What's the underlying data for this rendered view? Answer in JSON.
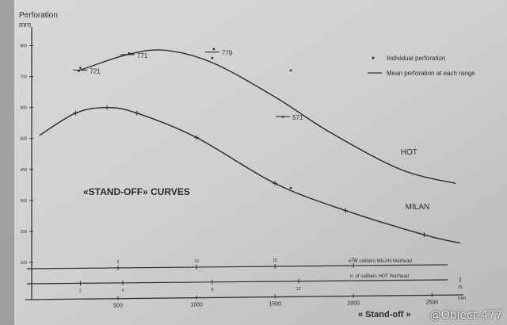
{
  "chart_data": {
    "type": "line",
    "title": "«STAND-OFF» CURVES",
    "ylabel": "Perforation",
    "yunit": "mm",
    "xlabel": "« Stand-off »",
    "xunit": "mm",
    "ylim": [
      0,
      850
    ],
    "xlim": [
      -50,
      2700
    ],
    "yticks": [
      100,
      200,
      300,
      400,
      500,
      600,
      700,
      800
    ],
    "xticks": [
      500,
      1000,
      1500,
      2000,
      2500
    ],
    "legend": {
      "placement": "top-right",
      "entries": [
        {
          "marker": "dot",
          "label": "Individual perforation"
        },
        {
          "marker": "line",
          "label": "Mean perforation at each range"
        }
      ]
    },
    "series": [
      {
        "name": "HOT",
        "x": [
          260,
          560,
          800,
          1100,
          1500,
          1850,
          2300,
          2650
        ],
        "y": [
          721,
          771,
          785,
          745,
          634,
          520,
          400,
          355
        ]
      },
      {
        "name": "MILAN",
        "x": [
          0,
          230,
          430,
          620,
          1000,
          1500,
          1950,
          2450,
          2680
        ],
        "y": [
          510,
          582,
          600,
          582,
          503,
          355,
          267,
          189,
          162
        ]
      }
    ],
    "point_labels": [
      {
        "x": 260,
        "y": 721,
        "text": "721"
      },
      {
        "x": 560,
        "y": 771,
        "text": "771"
      },
      {
        "x": 1100,
        "y": 779,
        "text": "779"
      },
      {
        "x": 1550,
        "y": 571,
        "text": "571"
      }
    ],
    "individual_points": [
      {
        "x": 260,
        "y": 728
      },
      {
        "x": 250,
        "y": 718
      },
      {
        "x": 570,
        "y": 775
      },
      {
        "x": 1100,
        "y": 760
      },
      {
        "x": 1110,
        "y": 789
      },
      {
        "x": 1600,
        "y": 720
      },
      {
        "x": 1600,
        "y": 340
      },
      {
        "x": 1550,
        "y": 570
      }
    ],
    "caliber_scales": [
      {
        "label": "n. of calibers MILAN Warhead",
        "ticks": [
          {
            "x": 500,
            "text": "5"
          },
          {
            "x": 1000,
            "text": "10"
          },
          {
            "x": 1500,
            "text": "15"
          },
          {
            "x": 2000,
            "text": "20"
          }
        ]
      },
      {
        "label": "n. of calibers HOT Warhead",
        "ticks": [
          {
            "x": 260,
            "text": "2"
          },
          {
            "x": 530,
            "text": "4"
          },
          {
            "x": 1100,
            "text": "8"
          },
          {
            "x": 1650,
            "text": "12"
          },
          {
            "x": 2680,
            "text": "25"
          }
        ]
      }
    ]
  },
  "watermark": "@Object-477"
}
